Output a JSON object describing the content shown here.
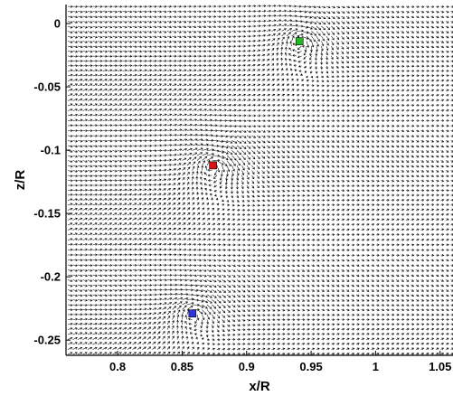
{
  "chart_data": {
    "type": "scatter",
    "plot_kind": "vector field (velocity arrows) with marked vortex cores",
    "title": "",
    "xlabel": "x/R",
    "ylabel": "z/R",
    "xlim": [
      0.76,
      1.06
    ],
    "ylim": [
      -0.262,
      0.015
    ],
    "xticks": [
      0.8,
      0.85,
      0.9,
      0.95,
      1,
      1.05
    ],
    "xtick_labels": [
      "0.8",
      "0.85",
      "0.9",
      "0.95",
      "1",
      "1.05"
    ],
    "yticks": [
      0,
      -0.05,
      -0.1,
      -0.15,
      -0.2,
      -0.25
    ],
    "ytick_labels": [
      "0",
      "-0.05",
      "-0.1",
      "-0.15",
      "-0.2",
      "-0.25"
    ],
    "grid": false,
    "legend": "none",
    "vortex_cores": [
      {
        "x": 0.941,
        "z": -0.014,
        "color": "#22bb22"
      },
      {
        "x": 0.874,
        "z": -0.112,
        "color": "#dd1111"
      },
      {
        "x": 0.858,
        "z": -0.229,
        "color": "#3333dd"
      }
    ],
    "arrow_color": "#000000",
    "marker_shape": "square"
  }
}
